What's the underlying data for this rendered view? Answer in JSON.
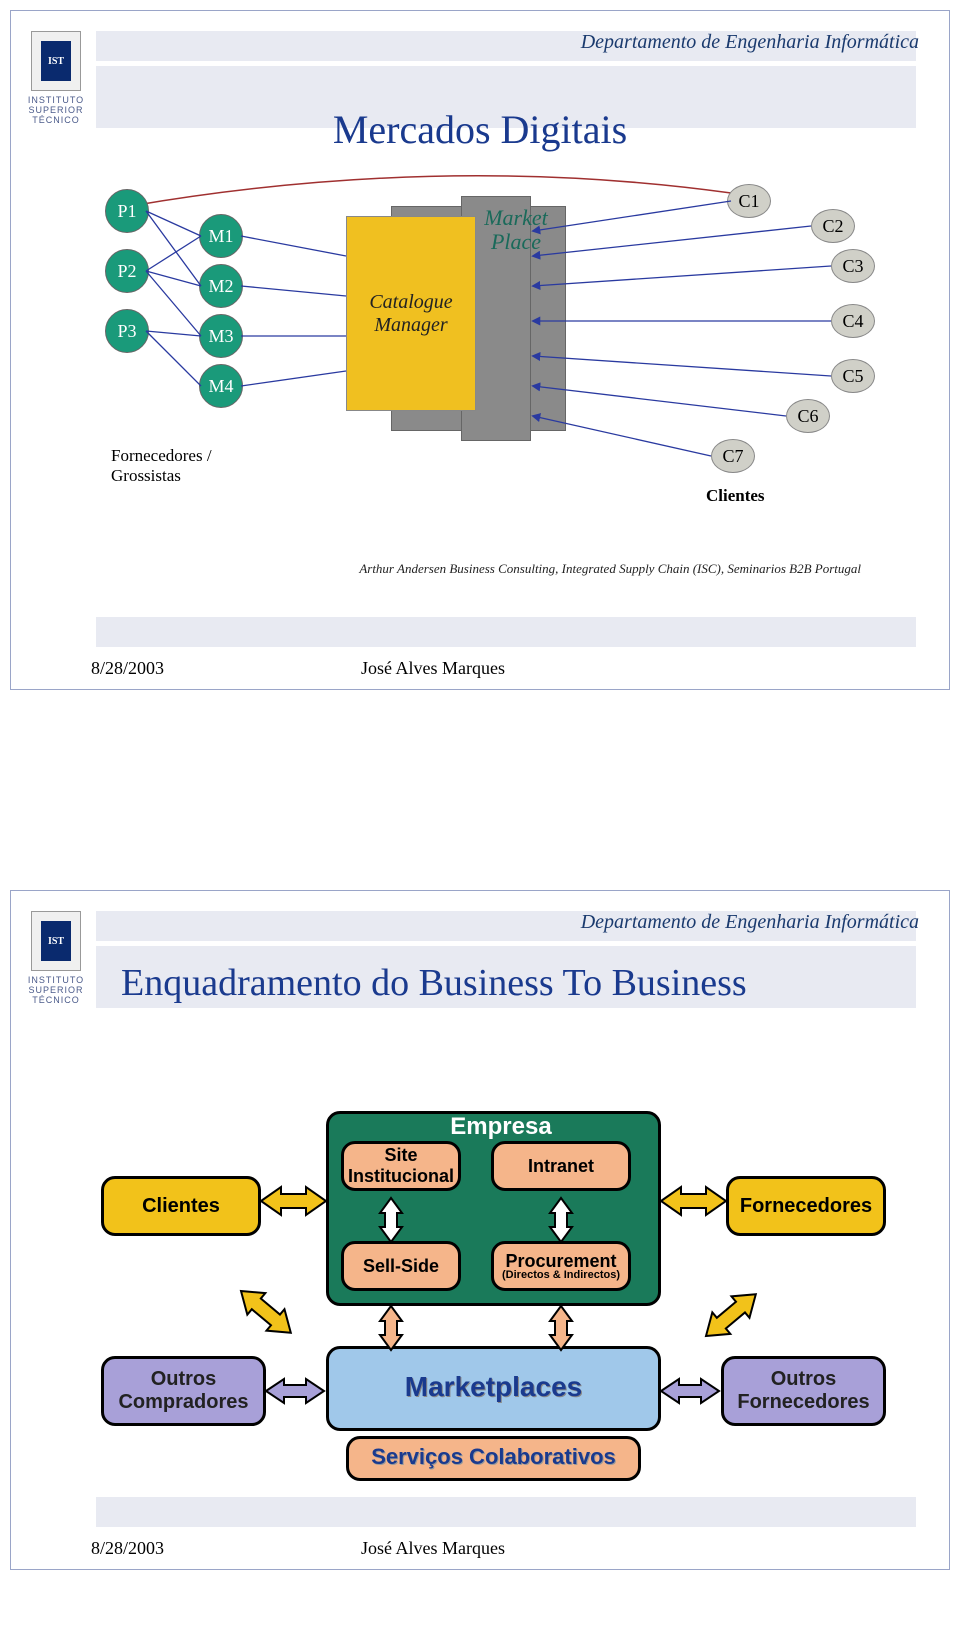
{
  "department": "Departamento de Engenharia Informática",
  "logo_text": "INSTITUTO SUPERIOR TÉCNICO",
  "slide1": {
    "title": "Mercados Digitais",
    "p_nodes": [
      "P1",
      "P2",
      "P3"
    ],
    "m_nodes": [
      "M1",
      "M2",
      "M3",
      "M4"
    ],
    "c_nodes": [
      "C1",
      "C2",
      "C3",
      "C4",
      "C5",
      "C6",
      "C7"
    ],
    "market_place": "Market\nPlace",
    "catalogue": "Catalogue Manager",
    "suppliers": "Fornecedores / Grossistas",
    "clients": "Clientes",
    "citation": "Arthur Andersen Business Consulting, Integrated Supply Chain (ISC), Seminarios  B2B  Portugal",
    "colors": {
      "p_node": "#1a9a7a",
      "c_node": "#d0d0c8",
      "yellow": "#f0c020",
      "grey": "#8a8a8a",
      "red_line": "#a03030",
      "blue_line": "#2a3aa0"
    }
  },
  "slide2": {
    "title": "Enquadramento do Business To Business",
    "empresa": "Empresa",
    "site": "Site Institucional",
    "intranet": "Intranet",
    "sellside": "Sell-Side",
    "procurement": "Procurement",
    "procurement_sub": "(Directos & Indirectos)",
    "clientes": "Clientes",
    "fornecedores": "Fornecedores",
    "outros_comp": "Outros Compradores",
    "outros_forn": "Outros Fornecedores",
    "marketplaces": "Marketplaces",
    "servicos": "Serviços Colaborativos",
    "colors": {
      "green": "#1a7a5a",
      "yellow": "#f2c21a",
      "purple": "#a8a0d8",
      "peach": "#f5b58a",
      "blue": "#a0c8ea",
      "arrow_yellow": "#f2c21a",
      "arrow_purple": "#a8a0d8",
      "arrow_peach": "#f5b58a",
      "arrow_white": "#ffffff"
    }
  },
  "footer": {
    "date": "8/28/2003",
    "author": "José Alves Marques"
  }
}
